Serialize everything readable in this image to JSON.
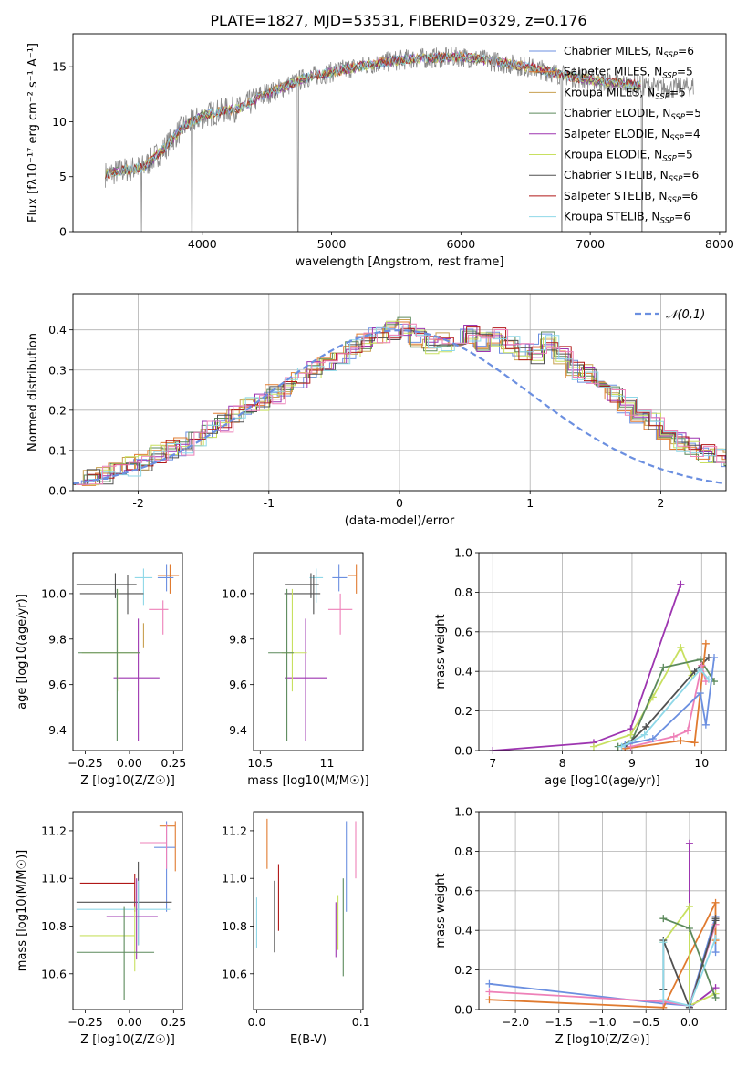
{
  "figure_title": "PLATE=1827, MJD=53531, FIBERID=0329, z=0.176",
  "palette": [
    "#6b8fe0",
    "#e07b30",
    "#c8a050",
    "#5c8a5c",
    "#9d35b0",
    "#c8e060",
    "#505050",
    "#b01818",
    "#8fd8e8",
    "#ee80b8",
    "#999999"
  ],
  "chart_data": [
    {
      "id": "spectrum",
      "type": "line",
      "title": "PLATE=1827, MJD=53531, FIBERID=0329, z=0.176",
      "xlabel": "wavelength [Angstrom, rest frame]",
      "ylabel": "Flux [fλ10⁻¹⁷ erg cm⁻² s⁻¹ A⁻¹]",
      "xlim": [
        3000,
        8050
      ],
      "ylim": [
        0,
        18
      ],
      "xticks": [
        4000,
        5000,
        6000,
        7000,
        8000
      ],
      "yticks": [
        0,
        5,
        10,
        15
      ],
      "grid": false,
      "legend_position": "top-right",
      "series": [
        {
          "name": "Chabrier MILES, N_SSP=6",
          "color": "#6b8fe0"
        },
        {
          "name": "Salpeter MILES, N_SSP=5",
          "color": "#e07b30"
        },
        {
          "name": "Kroupa MILES, N_SSP=5",
          "color": "#c8a050"
        },
        {
          "name": "Chabrier ELODIE, N_SSP=5",
          "color": "#5c8a5c"
        },
        {
          "name": "Salpeter ELODIE, N_SSP=4",
          "color": "#9d35b0"
        },
        {
          "name": "Kroupa ELODIE, N_SSP=5",
          "color": "#c8e060"
        },
        {
          "name": "Chabrier STELIB, N_SSP=6",
          "color": "#505050"
        },
        {
          "name": "Salpeter STELIB, N_SSP=6",
          "color": "#b01818"
        },
        {
          "name": "Kroupa STELIB, N_SSP=6",
          "color": "#8fd8e8"
        }
      ],
      "continuum": {
        "x": [
          3250,
          3400,
          3550,
          3700,
          3850,
          4000,
          4150,
          4300,
          4450,
          4600,
          4800,
          5000,
          5200,
          5400,
          5600,
          5800,
          6000,
          6200,
          6400,
          6600,
          6800,
          7000,
          7200,
          7400,
          7600,
          7800
        ],
        "y": [
          5.2,
          5.6,
          5.9,
          7.5,
          9.5,
          10.5,
          11.0,
          11.2,
          12.3,
          13.0,
          14.0,
          14.5,
          15.0,
          15.4,
          15.7,
          15.8,
          15.9,
          15.6,
          15.2,
          14.8,
          14.2,
          13.8,
          13.5,
          13.3,
          13.0,
          13.2
        ]
      },
      "absorption_lines": [
        {
          "x": 3530,
          "y": 0
        },
        {
          "x": 3920,
          "y": 0
        },
        {
          "x": 4740,
          "y": 0
        },
        {
          "x": 6780,
          "y": 0
        },
        {
          "x": 7400,
          "y": 0
        }
      ]
    },
    {
      "id": "residuals",
      "type": "bar",
      "xlabel": "(data-model)/error",
      "ylabel": "Normed distribution",
      "xlim": [
        -2.5,
        2.5
      ],
      "ylim": [
        0,
        0.49
      ],
      "xticks": [
        -2,
        -1,
        0,
        1,
        2
      ],
      "yticks": [
        0.0,
        0.1,
        0.2,
        0.3,
        0.4
      ],
      "grid": true,
      "legend_position": "top-right",
      "legend": "𝒩(0,1)",
      "bin_width": 0.1,
      "representative_histogram": [
        0.04,
        0.03,
        0.04,
        0.05,
        0.06,
        0.07,
        0.09,
        0.1,
        0.11,
        0.13,
        0.15,
        0.17,
        0.19,
        0.21,
        0.22,
        0.24,
        0.26,
        0.28,
        0.3,
        0.32,
        0.33,
        0.35,
        0.37,
        0.39,
        0.4,
        0.41,
        0.38,
        0.36,
        0.37,
        0.38,
        0.39,
        0.37,
        0.38,
        0.36,
        0.35,
        0.34,
        0.37,
        0.34,
        0.3,
        0.29,
        0.26,
        0.24,
        0.21,
        0.18,
        0.17,
        0.14,
        0.12,
        0.11,
        0.09,
        0.08,
        0.07,
        0.06,
        0.06,
        0.05,
        0.04,
        0.03,
        0.03,
        0.02,
        0.02,
        0.03
      ]
    },
    {
      "id": "age-vs-z",
      "type": "scatter",
      "xlabel": "Z [log10(Z/Z☉)]",
      "ylabel": "age  [log10(age/yr)]",
      "xlim": [
        -0.32,
        0.3
      ],
      "ylim": [
        9.31,
        10.18
      ],
      "xticks": [
        -0.25,
        0.0,
        0.25
      ],
      "xticklabels": [
        "−0.25",
        "0.00",
        "0.25"
      ],
      "yticks": [
        9.4,
        9.6,
        9.8,
        10.0
      ],
      "grid": false,
      "errorbars": [
        {
          "x": 0.23,
          "y": 10.08,
          "xerr": [
            0.07,
            0.05
          ],
          "yerr": [
            0.08,
            0.05
          ],
          "color": "#e07b30"
        },
        {
          "x": 0.21,
          "y": 10.07,
          "xerr": [
            0.05,
            0.04
          ],
          "yerr": [
            0.06,
            0.06
          ],
          "color": "#6b8fe0"
        },
        {
          "x": 0.19,
          "y": 9.93,
          "xerr": [
            0.08,
            0.03
          ],
          "yerr": [
            0.11,
            0.04
          ],
          "color": "#ee80b8"
        },
        {
          "x": 0.08,
          "y": 10.07,
          "xerr": [
            0.05,
            0.05
          ],
          "yerr": [
            0.12,
            0.04
          ],
          "color": "#8fd8e8"
        },
        {
          "x": 0.05,
          "y": 9.63,
          "xerr": [
            0.14,
            0.12
          ],
          "yerr": [
            0.28,
            0.26
          ],
          "color": "#9d35b0"
        },
        {
          "x": -0.01,
          "y": 10.0,
          "xerr": [
            0.27,
            0.09
          ],
          "yerr": [
            0.09,
            0.08
          ],
          "color": "#505050"
        },
        {
          "x": -0.08,
          "y": 10.04,
          "xerr": [
            0.22,
            0.12
          ],
          "yerr": [
            0.06,
            0.05
          ],
          "color": "#505050"
        },
        {
          "x": -0.06,
          "y": 9.74,
          "xerr": [
            0.21,
            0.11
          ],
          "yerr": [
            0.17,
            0.28
          ],
          "color": "#c8e060"
        },
        {
          "x": -0.07,
          "y": 9.74,
          "xerr": [
            0.22,
            0.13
          ],
          "yerr": [
            0.39,
            0.28
          ],
          "color": "#5c8a5c"
        },
        {
          "x": 0.08,
          "y": 9.87,
          "xerr": [
            0.0,
            0.0
          ],
          "yerr": [
            0.11,
            0.0
          ],
          "color": "#c8a050"
        }
      ]
    },
    {
      "id": "age-vs-mass",
      "type": "scatter",
      "xlabel": "mass [log10(M/M☉)]",
      "ylabel": "",
      "xlim": [
        10.45,
        11.27
      ],
      "ylim": [
        9.31,
        10.18
      ],
      "xticks": [
        10.5,
        11.0
      ],
      "yticks": [
        9.4,
        9.6,
        9.8,
        10.0
      ],
      "grid": false,
      "errorbars": [
        {
          "x": 11.22,
          "y": 10.08,
          "xerr": [
            0.06,
            0.0
          ],
          "yerr": [
            0.08,
            0.05
          ],
          "color": "#e07b30"
        },
        {
          "x": 11.09,
          "y": 10.07,
          "xerr": [
            0.05,
            0.06
          ],
          "yerr": [
            0.06,
            0.06
          ],
          "color": "#6b8fe0"
        },
        {
          "x": 11.1,
          "y": 9.93,
          "xerr": [
            0.09,
            0.09
          ],
          "yerr": [
            0.11,
            0.07
          ],
          "color": "#ee80b8"
        },
        {
          "x": 10.92,
          "y": 10.07,
          "xerr": [
            0.05,
            0.05
          ],
          "yerr": [
            0.11,
            0.04
          ],
          "color": "#8fd8e8"
        },
        {
          "x": 10.84,
          "y": 9.63,
          "xerr": [
            0.15,
            0.16
          ],
          "yerr": [
            0.28,
            0.26
          ],
          "color": "#9d35b0"
        },
        {
          "x": 10.9,
          "y": 10.0,
          "xerr": [
            0.22,
            0.05
          ],
          "yerr": [
            0.09,
            0.08
          ],
          "color": "#505050"
        },
        {
          "x": 10.88,
          "y": 10.04,
          "xerr": [
            0.19,
            0.06
          ],
          "yerr": [
            0.06,
            0.05
          ],
          "color": "#505050"
        },
        {
          "x": 10.74,
          "y": 9.74,
          "xerr": [
            0.08,
            0.11
          ],
          "yerr": [
            0.17,
            0.28
          ],
          "color": "#c8e060"
        },
        {
          "x": 10.7,
          "y": 9.74,
          "xerr": [
            0.14,
            0.05
          ],
          "yerr": [
            0.39,
            0.28
          ],
          "color": "#5c8a5c"
        }
      ]
    },
    {
      "id": "mass-weight-vs-age",
      "type": "line",
      "xlabel": "age  [log10(age/yr)]",
      "ylabel": "mass weight",
      "xlim": [
        6.8,
        10.35
      ],
      "ylim": [
        0,
        1.0
      ],
      "xticks": [
        7,
        8,
        9,
        10
      ],
      "yticks": [
        0.0,
        0.2,
        0.4,
        0.6,
        0.8,
        1.0
      ],
      "grid": true,
      "series": [
        {
          "color": "#9d35b0",
          "x": [
            7.0,
            8.45,
            8.98,
            9.7
          ],
          "y": [
            0.0,
            0.04,
            0.11,
            0.84
          ]
        },
        {
          "color": "#c8e060",
          "x": [
            8.45,
            8.98,
            9.3,
            9.7,
            9.86
          ],
          "y": [
            0.02,
            0.08,
            0.27,
            0.52,
            0.38
          ]
        },
        {
          "color": "#5c8a5c",
          "x": [
            8.8,
            9.0,
            9.45,
            9.98,
            10.18
          ],
          "y": [
            0.02,
            0.05,
            0.42,
            0.46,
            0.35
          ]
        },
        {
          "color": "#505050",
          "x": [
            8.9,
            9.2,
            9.9,
            10.1
          ],
          "y": [
            0.02,
            0.12,
            0.4,
            0.47
          ]
        },
        {
          "color": "#e07b30",
          "x": [
            8.9,
            9.7,
            9.9,
            10.06
          ],
          "y": [
            0.01,
            0.05,
            0.04,
            0.54
          ]
        },
        {
          "color": "#ee80b8",
          "x": [
            8.98,
            9.6,
            9.8,
            10.0,
            10.06
          ],
          "y": [
            0.02,
            0.07,
            0.1,
            0.43,
            0.35
          ]
        },
        {
          "color": "#6b8fe0",
          "x": [
            8.9,
            9.3,
            9.98,
            10.06,
            10.18
          ],
          "y": [
            0.03,
            0.06,
            0.29,
            0.13,
            0.47
          ]
        },
        {
          "color": "#8fd8e8",
          "x": [
            8.85,
            9.18,
            9.98,
            10.1
          ],
          "y": [
            0.02,
            0.08,
            0.41,
            0.36
          ]
        }
      ]
    },
    {
      "id": "mass-vs-z",
      "type": "scatter",
      "xlabel": "Z [log10(Z/Z☉)]",
      "ylabel": "mass [log10(M/M☉)]",
      "xlim": [
        -0.32,
        0.3
      ],
      "ylim": [
        10.45,
        11.28
      ],
      "xticks": [
        -0.25,
        0.0,
        0.25
      ],
      "xticklabels": [
        "−0.25",
        "0.00",
        "0.25"
      ],
      "yticks": [
        10.6,
        10.8,
        11.0,
        11.2
      ],
      "grid": false,
      "errorbars": [
        {
          "x": 0.26,
          "y": 11.22,
          "xerr": [
            0.09,
            0.0
          ],
          "yerr": [
            0.19,
            0.02
          ],
          "color": "#e07b30"
        },
        {
          "x": 0.21,
          "y": 11.13,
          "xerr": [
            0.07,
            0.05
          ],
          "yerr": [
            0.27,
            0.11
          ],
          "color": "#6b8fe0"
        },
        {
          "x": 0.21,
          "y": 11.15,
          "xerr": [
            0.15,
            0.0
          ],
          "yerr": [
            0.11,
            0.08
          ],
          "color": "#ee80b8"
        },
        {
          "x": 0.03,
          "y": 10.98,
          "xerr": [
            0.31,
            0.0
          ],
          "yerr": [
            0.12,
            0.04
          ],
          "color": "#b01818"
        },
        {
          "x": 0.05,
          "y": 10.9,
          "xerr": [
            0.35,
            0.19
          ],
          "yerr": [
            0.18,
            0.17
          ],
          "color": "#505050"
        },
        {
          "x": 0.05,
          "y": 10.87,
          "xerr": [
            0.35,
            0.18
          ],
          "yerr": [
            0.15,
            0.12
          ],
          "color": "#8fd8e8"
        },
        {
          "x": 0.04,
          "y": 10.84,
          "xerr": [
            0.17,
            0.12
          ],
          "yerr": [
            0.18,
            0.16
          ],
          "color": "#9d35b0"
        },
        {
          "x": 0.03,
          "y": 10.76,
          "xerr": [
            0.31,
            0.0
          ],
          "yerr": [
            0.15,
            0.12
          ],
          "color": "#c8e060"
        },
        {
          "x": -0.03,
          "y": 10.69,
          "xerr": [
            0.27,
            0.17
          ],
          "yerr": [
            0.2,
            0.19
          ],
          "color": "#5c8a5c"
        }
      ]
    },
    {
      "id": "mass-vs-ebv",
      "type": "scatter",
      "xlabel": "E(B-V)",
      "ylabel": "",
      "xlim": [
        -0.003,
        0.102
      ],
      "ylim": [
        10.45,
        11.28
      ],
      "xticks": [
        0.0,
        0.1
      ],
      "xticklabels": [
        "0.0",
        "0.1"
      ],
      "yticks": [
        10.6,
        10.8,
        11.0,
        11.2
      ],
      "grid": false,
      "errorbars": [
        {
          "x": 0.01,
          "y": 11.14,
          "yerr": [
            0.1,
            0.11
          ],
          "color": "#e07b30"
        },
        {
          "x": 0.017,
          "y": 10.84,
          "yerr": [
            0.15,
            0.15
          ],
          "color": "#505050"
        },
        {
          "x": 0.021,
          "y": 10.92,
          "yerr": [
            0.14,
            0.14
          ],
          "color": "#b01818"
        },
        {
          "x": 0.0,
          "y": 10.82,
          "yerr": [
            0.11,
            0.1
          ],
          "color": "#8fd8e8"
        },
        {
          "x": 0.076,
          "y": 10.77,
          "yerr": [
            0.1,
            0.13
          ],
          "color": "#9d35b0"
        },
        {
          "x": 0.078,
          "y": 10.81,
          "yerr": [
            0.11,
            0.12
          ],
          "color": "#c8e060"
        },
        {
          "x": 0.083,
          "y": 10.74,
          "yerr": [
            0.15,
            0.26
          ],
          "color": "#5c8a5c"
        },
        {
          "x": 0.086,
          "y": 11.05,
          "yerr": [
            0.19,
            0.19
          ],
          "color": "#6b8fe0"
        },
        {
          "x": 0.095,
          "y": 11.12,
          "yerr": [
            0.12,
            0.12
          ],
          "color": "#ee80b8"
        }
      ]
    },
    {
      "id": "mass-weight-vs-z",
      "type": "line",
      "xlabel": "Z [log10(Z/Z☉)]",
      "ylabel": "mass weight",
      "xlim": [
        -2.42,
        0.42
      ],
      "ylim": [
        0,
        1.0
      ],
      "xticks": [
        -2.0,
        -1.5,
        -1.0,
        -0.5,
        0.0
      ],
      "xticklabels": [
        "−2.0",
        "−1.5",
        "−1.0",
        "−0.5",
        "0.0"
      ],
      "yticks": [
        0.0,
        0.2,
        0.4,
        0.6,
        0.8,
        1.0
      ],
      "grid": true,
      "series": [
        {
          "color": "#6b8fe0",
          "x": [
            -2.3,
            -0.3,
            0.0,
            0.3,
            0.3
          ],
          "y": [
            0.13,
            0.03,
            0.02,
            0.47,
            0.29
          ]
        },
        {
          "color": "#e07b30",
          "x": [
            -2.3,
            -0.3,
            0.3,
            0.3
          ],
          "y": [
            0.05,
            0.01,
            0.54,
            0.35
          ]
        },
        {
          "color": "#ee80b8",
          "x": [
            -2.3,
            -0.3,
            0.0,
            0.3
          ],
          "y": [
            0.09,
            0.04,
            0.02,
            0.43
          ]
        },
        {
          "color": "#9d35b0",
          "x": [
            0.0,
            0.0,
            0.3
          ],
          "y": [
            0.84,
            0.01,
            0.11
          ]
        },
        {
          "color": "#c8e060",
          "x": [
            -0.3,
            0.0,
            0.0,
            0.3
          ],
          "y": [
            0.34,
            0.52,
            0.02,
            0.08
          ]
        },
        {
          "color": "#5c8a5c",
          "x": [
            -0.3,
            0.0,
            0.3
          ],
          "y": [
            0.46,
            0.41,
            0.06
          ]
        },
        {
          "color": "#505050",
          "x": [
            -0.3,
            -0.3,
            0.0,
            0.3,
            0.3
          ],
          "y": [
            0.1,
            0.35,
            0.01,
            0.45,
            0.46
          ]
        },
        {
          "color": "#8fd8e8",
          "x": [
            -0.3,
            -0.3,
            0.0,
            0.3
          ],
          "y": [
            0.34,
            0.05,
            0.02,
            0.36
          ]
        }
      ]
    }
  ]
}
